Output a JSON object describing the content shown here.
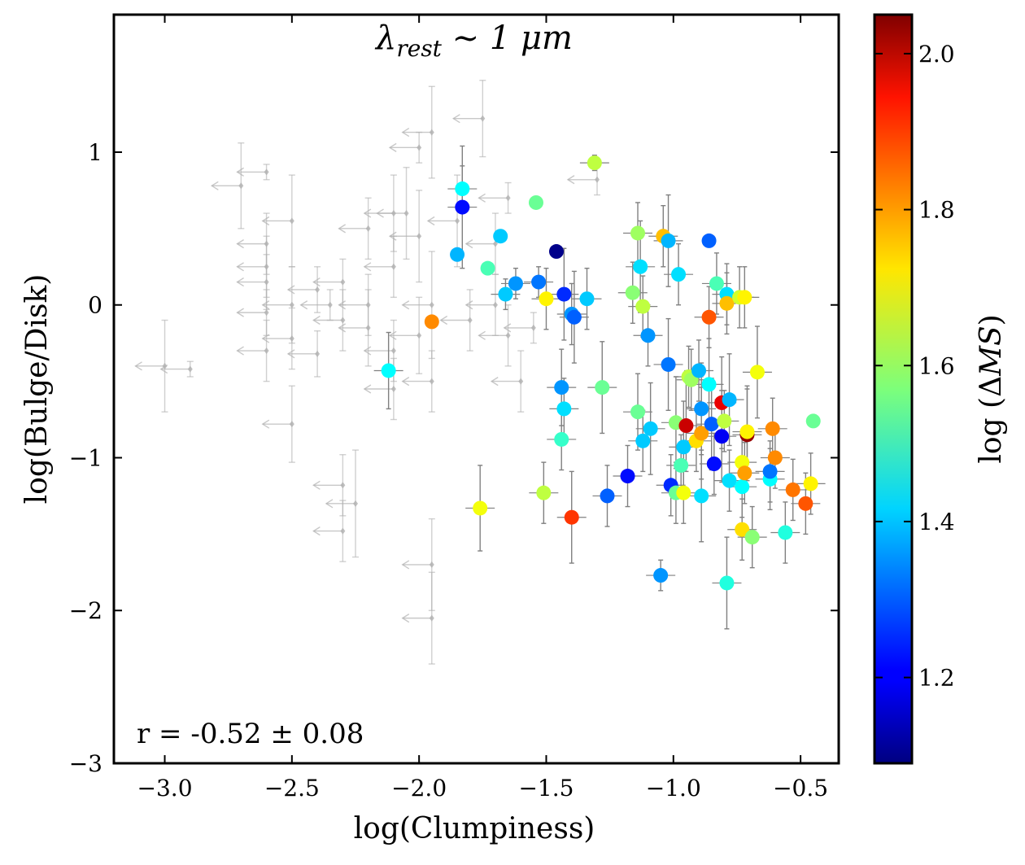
{
  "chart_data": {
    "type": "scatter",
    "title": "λrest ∼ 1 μm",
    "title_parts": {
      "main": "λ",
      "sub": "rest",
      "rest": " ∼ 1 μm"
    },
    "xlabel": "log(Clumpiness)",
    "ylabel": "log(Bulge/Disk)",
    "xlim": [
      -3.2,
      -0.35
    ],
    "ylim": [
      -3.0,
      1.9
    ],
    "xticks": [
      -3.0,
      -2.5,
      -2.0,
      -1.5,
      -1.0,
      -0.5
    ],
    "xtick_labels": [
      "−3.0",
      "−2.5",
      "−2.0",
      "−1.5",
      "−1.0",
      "−0.5"
    ],
    "yticks": [
      -3,
      -2,
      -1,
      0,
      1
    ],
    "ytick_labels": [
      "−3",
      "−2",
      "−1",
      "0",
      "1"
    ],
    "annotation": "r = -0.52 ± 0.08",
    "colorbar": {
      "label": "log (ΔMS)",
      "label_parts": {
        "pre": "log (",
        "delta": "Δ",
        "var": "MS",
        "post": ")"
      },
      "range": [
        1.09,
        2.05
      ],
      "ticks": [
        1.2,
        1.4,
        1.6,
        1.8,
        2.0
      ],
      "tick_labels": [
        "1.2",
        "1.4",
        "1.6",
        "1.8",
        "2.0"
      ],
      "colormap": "jet"
    },
    "colors": {
      "upper_limit": "#b0b0b0",
      "errorbar": "#808080",
      "axis": "#000000"
    },
    "series": [
      {
        "name": "upper limits",
        "points": [
          {
            "x": -3.0,
            "y": -0.4,
            "ey": 0.3
          },
          {
            "x": -2.9,
            "y": -0.42,
            "ey": 0.05
          },
          {
            "x": -2.7,
            "y": 0.78,
            "ey": 0.28
          },
          {
            "x": -2.6,
            "y": 0.87,
            "ey": 0.05
          },
          {
            "x": -2.5,
            "y": 0.55,
            "ey": 0.3
          },
          {
            "x": -2.6,
            "y": 0.4,
            "ey": 0.2
          },
          {
            "x": -2.6,
            "y": 0.25,
            "ey": 0.2
          },
          {
            "x": -2.6,
            "y": 0.15,
            "ey": 0.18
          },
          {
            "x": -2.6,
            "y": -0.05,
            "ey": 0.15
          },
          {
            "x": -2.5,
            "y": 0.0,
            "ey": 0.25
          },
          {
            "x": -2.5,
            "y": -0.22,
            "ey": 0.2
          },
          {
            "x": -2.6,
            "y": -0.3,
            "ey": 0.2
          },
          {
            "x": -2.5,
            "y": -0.78,
            "ey": 0.25
          },
          {
            "x": -2.4,
            "y": 0.1,
            "ey": 0.15
          },
          {
            "x": -2.4,
            "y": -0.32,
            "ey": 0.15
          },
          {
            "x": -2.35,
            "y": 0.0,
            "ey": 0.1
          },
          {
            "x": -2.3,
            "y": 0.15,
            "ey": 0.15
          },
          {
            "x": -2.3,
            "y": -0.1,
            "ey": 0.2
          },
          {
            "x": -2.3,
            "y": -1.18,
            "ey": 0.2
          },
          {
            "x": -2.3,
            "y": -1.48,
            "ey": 0.2
          },
          {
            "x": -2.25,
            "y": -1.3,
            "ey": 0.35
          },
          {
            "x": -2.2,
            "y": 0.5,
            "ey": 0.2
          },
          {
            "x": -2.2,
            "y": 0.0,
            "ey": 0.2
          },
          {
            "x": -2.2,
            "y": -0.15,
            "ey": 0.25
          },
          {
            "x": -2.1,
            "y": 0.6,
            "ey": 0.25
          },
          {
            "x": -2.1,
            "y": 0.25,
            "ey": 0.2
          },
          {
            "x": -2.1,
            "y": -0.3,
            "ey": 0.2
          },
          {
            "x": -2.1,
            "y": -0.55,
            "ey": 0.2
          },
          {
            "x": -2.05,
            "y": 0.6,
            "ey": 0.3
          },
          {
            "x": -2.0,
            "y": 0.45,
            "ey": 0.3
          },
          {
            "x": -2.0,
            "y": 1.03,
            "ey": 0.1
          },
          {
            "x": -2.0,
            "y": -0.2,
            "ey": 0.25
          },
          {
            "x": -1.95,
            "y": 1.13,
            "ey": 0.3
          },
          {
            "x": -1.95,
            "y": 0.0,
            "ey": 0.35
          },
          {
            "x": -1.95,
            "y": -0.5,
            "ey": 0.2
          },
          {
            "x": -1.95,
            "y": -1.7,
            "ey": 0.3
          },
          {
            "x": -1.95,
            "y": -2.05,
            "ey": 0.3
          },
          {
            "x": -1.85,
            "y": 0.55,
            "ey": 0.3
          },
          {
            "x": -1.8,
            "y": -0.1,
            "ey": 0.2
          },
          {
            "x": -1.75,
            "y": 1.22,
            "ey": 0.25
          },
          {
            "x": -1.7,
            "y": 0.4,
            "ey": 0.2
          },
          {
            "x": -1.7,
            "y": 0.0,
            "ey": 0.2
          },
          {
            "x": -1.65,
            "y": 0.7,
            "ey": 0.1
          },
          {
            "x": -1.65,
            "y": -0.2,
            "ey": 0.2
          },
          {
            "x": -1.6,
            "y": -0.5,
            "ey": 0.2
          },
          {
            "x": -1.55,
            "y": -0.15,
            "ey": 0.1
          },
          {
            "x": -1.3,
            "y": 0.82,
            "ey": 0.1
          }
        ]
      },
      {
        "name": "detections",
        "points": [
          {
            "x": -2.12,
            "y": -0.43,
            "ey": 0.25,
            "c": 1.45
          },
          {
            "x": -1.95,
            "y": -0.11,
            "ey": 0.0,
            "c": 1.8
          },
          {
            "x": -1.85,
            "y": 0.33,
            "ey": 0.0,
            "c": 1.38
          },
          {
            "x": -1.83,
            "y": 0.76,
            "ey": 0.15,
            "c": 1.45
          },
          {
            "x": -1.83,
            "y": 0.64,
            "ey": 0.4,
            "c": 1.22
          },
          {
            "x": -1.76,
            "y": -1.33,
            "ey": 0.28,
            "c": 1.68
          },
          {
            "x": -1.73,
            "y": 0.24,
            "ey": 0.0,
            "c": 1.52
          },
          {
            "x": -1.68,
            "y": 0.45,
            "ey": 0.0,
            "c": 1.4
          },
          {
            "x": -1.66,
            "y": 0.07,
            "ey": 0.1,
            "c": 1.4
          },
          {
            "x": -1.62,
            "y": 0.14,
            "ey": 0.1,
            "c": 1.35
          },
          {
            "x": -1.54,
            "y": 0.67,
            "ey": 0.0,
            "c": 1.55
          },
          {
            "x": -1.53,
            "y": 0.15,
            "ey": 0.1,
            "c": 1.32
          },
          {
            "x": -1.51,
            "y": -1.23,
            "ey": 0.2,
            "c": 1.63
          },
          {
            "x": -1.5,
            "y": 0.04,
            "ey": 0.2,
            "c": 1.7
          },
          {
            "x": -1.46,
            "y": 0.35,
            "ey": 0.0,
            "c": 1.1
          },
          {
            "x": -1.44,
            "y": -0.54,
            "ey": 0.25,
            "c": 1.35
          },
          {
            "x": -1.44,
            "y": -0.88,
            "ey": 0.2,
            "c": 1.5
          },
          {
            "x": -1.43,
            "y": 0.07,
            "ey": 0.3,
            "c": 1.25
          },
          {
            "x": -1.43,
            "y": -0.68,
            "ey": 0.2,
            "c": 1.42
          },
          {
            "x": -1.4,
            "y": -0.06,
            "ey": 0.2,
            "c": 1.35
          },
          {
            "x": -1.4,
            "y": -1.39,
            "ey": 0.3,
            "c": 1.88
          },
          {
            "x": -1.39,
            "y": -0.08,
            "ey": 0.3,
            "c": 1.3
          },
          {
            "x": -1.34,
            "y": 0.04,
            "ey": 0.2,
            "c": 1.4
          },
          {
            "x": -1.31,
            "y": 0.93,
            "ey": 0.05,
            "c": 1.63
          },
          {
            "x": -1.28,
            "y": -0.54,
            "ey": 0.3,
            "c": 1.55
          },
          {
            "x": -1.26,
            "y": -1.25,
            "ey": 0.2,
            "c": 1.3
          },
          {
            "x": -1.18,
            "y": -1.12,
            "ey": 0.2,
            "c": 1.22
          },
          {
            "x": -1.16,
            "y": 0.08,
            "ey": 0.2,
            "c": 1.58
          },
          {
            "x": -1.14,
            "y": 0.47,
            "ey": 0.2,
            "c": 1.6
          },
          {
            "x": -1.14,
            "y": -0.7,
            "ey": 0.25,
            "c": 1.55
          },
          {
            "x": -1.13,
            "y": 0.25,
            "ey": 0.3,
            "c": 1.42
          },
          {
            "x": -1.12,
            "y": -0.89,
            "ey": 0.2,
            "c": 1.4
          },
          {
            "x": -1.12,
            "y": -0.01,
            "ey": 0.2,
            "c": 1.63
          },
          {
            "x": -1.1,
            "y": -0.2,
            "ey": 0.2,
            "c": 1.35
          },
          {
            "x": -1.09,
            "y": -0.81,
            "ey": 0.3,
            "c": 1.4
          },
          {
            "x": -1.05,
            "y": -1.77,
            "ey": 0.1,
            "c": 1.35
          },
          {
            "x": -1.04,
            "y": 0.45,
            "ey": 0.2,
            "c": 1.75
          },
          {
            "x": -1.02,
            "y": 0.42,
            "ey": 0.3,
            "c": 1.38
          },
          {
            "x": -1.02,
            "y": -0.39,
            "ey": 0.3,
            "c": 1.32
          },
          {
            "x": -1.01,
            "y": -1.18,
            "ey": 0.2,
            "c": 1.25
          },
          {
            "x": -0.99,
            "y": -1.23,
            "ey": 0.2,
            "c": 1.55
          },
          {
            "x": -0.99,
            "y": -0.77,
            "ey": 0.3,
            "c": 1.58
          },
          {
            "x": -0.98,
            "y": 0.2,
            "ey": 0.2,
            "c": 1.42
          },
          {
            "x": -0.97,
            "y": -1.05,
            "ey": 0.2,
            "c": 1.52
          },
          {
            "x": -0.96,
            "y": -0.93,
            "ey": 0.3,
            "c": 1.4
          },
          {
            "x": -0.96,
            "y": -1.23,
            "ey": 0.2,
            "c": 1.68
          },
          {
            "x": -0.95,
            "y": -0.79,
            "ey": 0.3,
            "c": 1.98
          },
          {
            "x": -0.94,
            "y": -0.47,
            "ey": 0.2,
            "c": 1.63
          },
          {
            "x": -0.93,
            "y": -0.49,
            "ey": 0.2,
            "c": 1.6
          },
          {
            "x": -0.91,
            "y": -0.89,
            "ey": 0.2,
            "c": 1.72
          },
          {
            "x": -0.9,
            "y": -0.43,
            "ey": 0.2,
            "c": 1.38
          },
          {
            "x": -0.89,
            "y": -1.25,
            "ey": 0.3,
            "c": 1.42
          },
          {
            "x": -0.89,
            "y": -0.84,
            "ey": 0.3,
            "c": 1.78
          },
          {
            "x": -0.89,
            "y": -0.68,
            "ey": 0.3,
            "c": 1.35
          },
          {
            "x": -0.86,
            "y": -0.52,
            "ey": 0.3,
            "c": 1.45
          },
          {
            "x": -0.86,
            "y": 0.42,
            "ey": 0.0,
            "c": 1.3
          },
          {
            "x": -0.86,
            "y": -0.08,
            "ey": 0.2,
            "c": 1.85
          },
          {
            "x": -0.85,
            "y": -0.78,
            "ey": 0.3,
            "c": 1.3
          },
          {
            "x": -0.84,
            "y": -1.04,
            "ey": 0.2,
            "c": 1.22
          },
          {
            "x": -0.83,
            "y": 0.14,
            "ey": 0.2,
            "c": 1.52
          },
          {
            "x": -0.81,
            "y": -0.86,
            "ey": 0.3,
            "c": 1.2
          },
          {
            "x": -0.81,
            "y": -0.64,
            "ey": 0.3,
            "c": 1.95
          },
          {
            "x": -0.8,
            "y": -0.76,
            "ey": 0.2,
            "c": 1.63
          },
          {
            "x": -0.79,
            "y": 0.07,
            "ey": 0.2,
            "c": 1.42
          },
          {
            "x": -0.79,
            "y": 0.01,
            "ey": 0.2,
            "c": 1.75
          },
          {
            "x": -0.78,
            "y": -1.15,
            "ey": 0.2,
            "c": 1.42
          },
          {
            "x": -0.78,
            "y": -0.62,
            "ey": 0.3,
            "c": 1.38
          },
          {
            "x": -0.79,
            "y": -1.82,
            "ey": 0.3,
            "c": 1.48
          },
          {
            "x": -0.74,
            "y": 0.05,
            "ey": 0.2,
            "c": 1.65
          },
          {
            "x": -0.73,
            "y": -1.03,
            "ey": 0.2,
            "c": 1.68
          },
          {
            "x": -0.73,
            "y": -1.19,
            "ey": 0.2,
            "c": 1.45
          },
          {
            "x": -0.73,
            "y": -1.47,
            "ey": 0.2,
            "c": 1.72
          },
          {
            "x": -0.72,
            "y": -1.1,
            "ey": 0.2,
            "c": 1.78
          },
          {
            "x": -0.72,
            "y": 0.05,
            "ey": 0.2,
            "c": 1.7
          },
          {
            "x": -0.71,
            "y": -0.85,
            "ey": 0.3,
            "c": 2.03
          },
          {
            "x": -0.71,
            "y": -0.83,
            "ey": 0.3,
            "c": 1.7
          },
          {
            "x": -0.69,
            "y": -1.52,
            "ey": 0.2,
            "c": 1.58
          },
          {
            "x": -0.67,
            "y": -0.44,
            "ey": 0.3,
            "c": 1.68
          },
          {
            "x": -0.62,
            "y": -1.14,
            "ey": 0.2,
            "c": 1.45
          },
          {
            "x": -0.62,
            "y": -1.09,
            "ey": 0.2,
            "c": 1.32
          },
          {
            "x": -0.61,
            "y": -0.81,
            "ey": 0.2,
            "c": 1.8
          },
          {
            "x": -0.6,
            "y": -1.0,
            "ey": 0.2,
            "c": 1.8
          },
          {
            "x": -0.56,
            "y": -1.49,
            "ey": 0.2,
            "c": 1.48
          },
          {
            "x": -0.53,
            "y": -1.21,
            "ey": 0.2,
            "c": 1.82
          },
          {
            "x": -0.48,
            "y": -1.3,
            "ey": 0.2,
            "c": 1.85
          },
          {
            "x": -0.46,
            "y": -1.17,
            "ey": 0.2,
            "c": 1.7
          },
          {
            "x": -0.45,
            "y": -0.76,
            "ey": 0.0,
            "c": 1.55
          }
        ]
      }
    ]
  }
}
